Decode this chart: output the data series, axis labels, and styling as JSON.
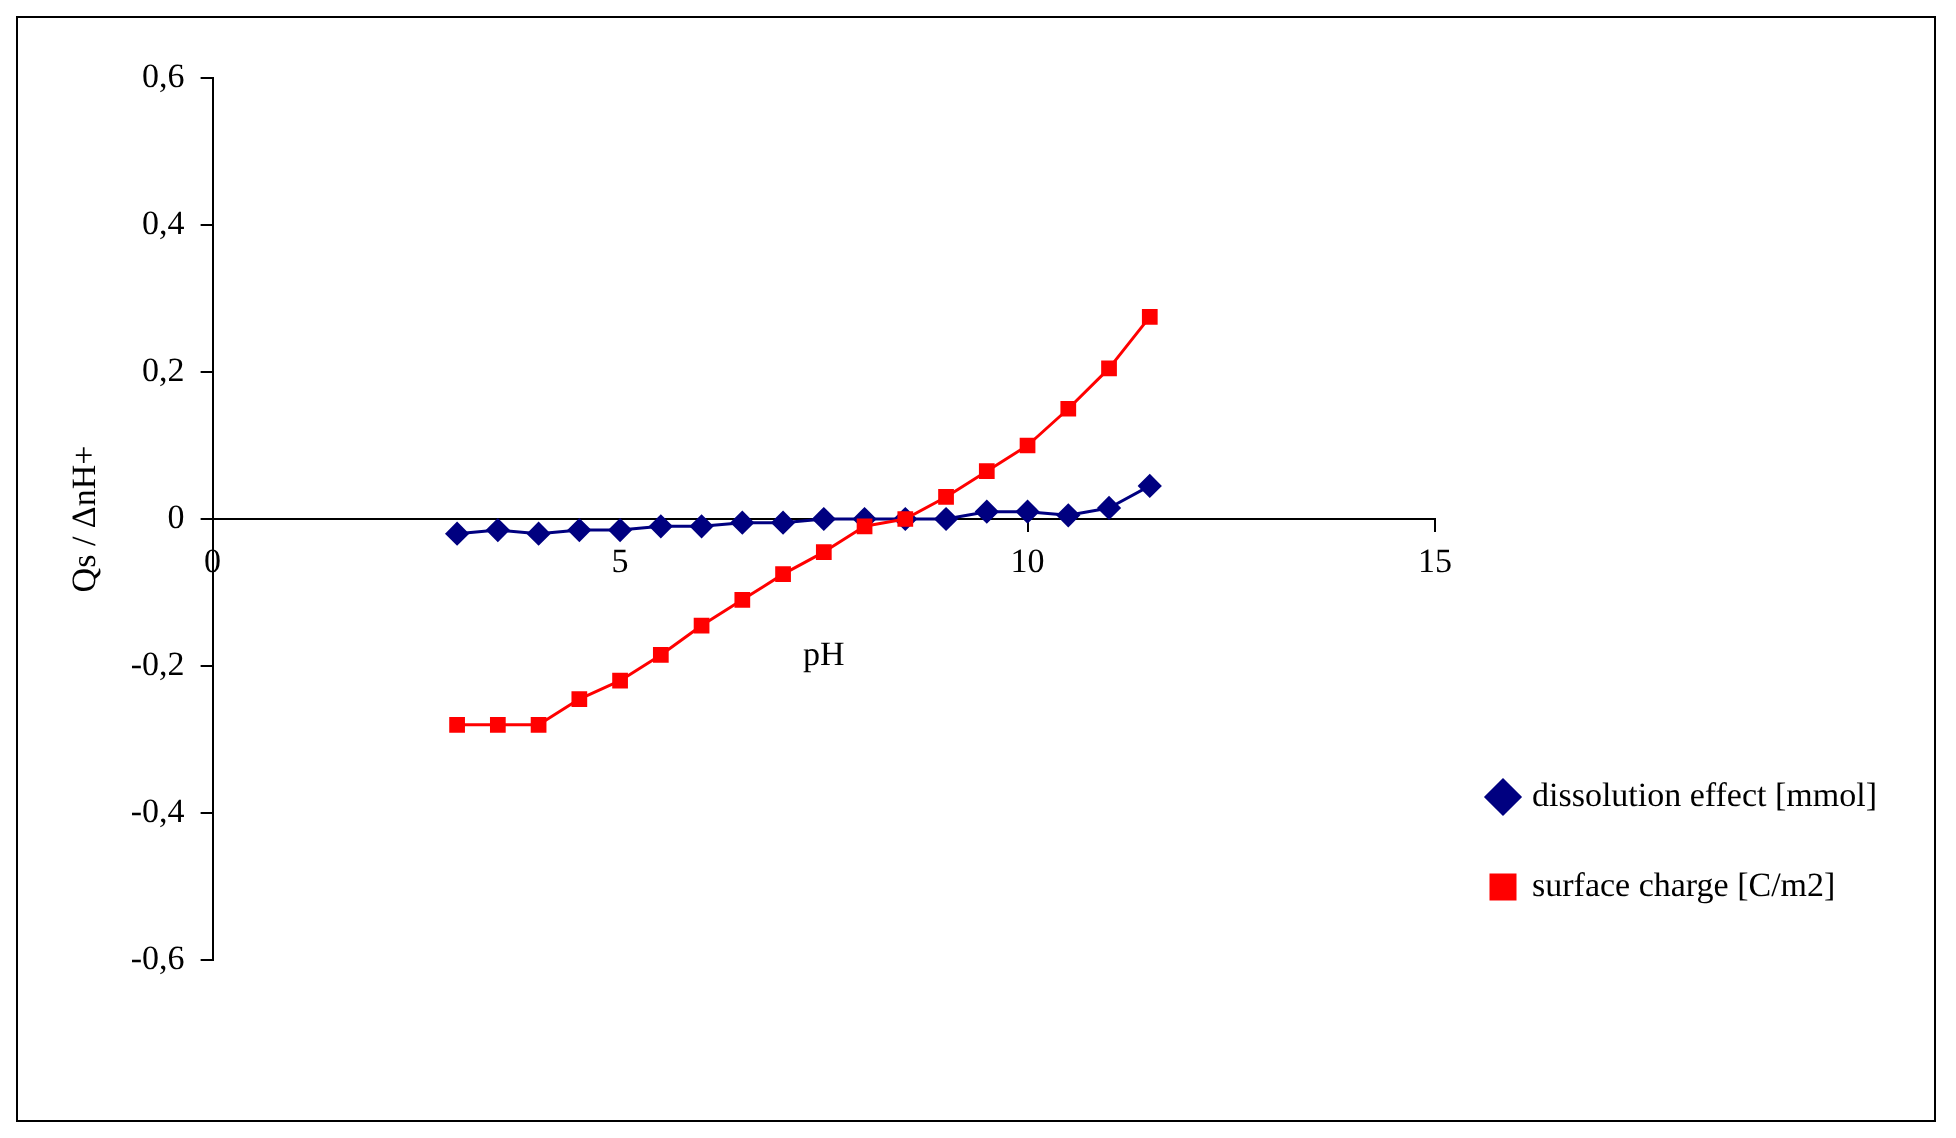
{
  "chart_data": {
    "type": "line",
    "xlabel": "pH",
    "ylabel": "Qs / ΔnH+",
    "xlim": [
      0,
      15
    ],
    "xticks": [
      0,
      5,
      10,
      15
    ],
    "ylim": [
      -0.6,
      0.6
    ],
    "yticks": [
      {
        "value": -0.6,
        "label": "-0,6"
      },
      {
        "value": -0.4,
        "label": "-0,4"
      },
      {
        "value": -0.2,
        "label": "-0,2"
      },
      {
        "value": 0,
        "label": "0"
      },
      {
        "value": 0.2,
        "label": "0,2"
      },
      {
        "value": 0.4,
        "label": "0,4"
      },
      {
        "value": 0.6,
        "label": "0,6"
      }
    ],
    "x": [
      3,
      3.5,
      4,
      4.5,
      5,
      5.5,
      6,
      6.5,
      7,
      7.5,
      8,
      8.5,
      9,
      9.5,
      10,
      10.5,
      11,
      11.5
    ],
    "grid": false,
    "legend": "right",
    "line_style": "solid",
    "series": [
      {
        "name": "dissolution effect [mmol]",
        "color": "#000080",
        "marker": "diamond",
        "values": [
          -0.02,
          -0.015,
          -0.02,
          -0.015,
          -0.015,
          -0.01,
          -0.01,
          -0.005,
          -0.005,
          0,
          0,
          0,
          0,
          0.01,
          0.01,
          0.005,
          0.015,
          0.045
        ]
      },
      {
        "name": "surface charge [C/m2]",
        "color": "#ff0000",
        "marker": "square",
        "values": [
          -0.28,
          -0.28,
          -0.28,
          -0.245,
          -0.22,
          -0.185,
          -0.145,
          -0.11,
          -0.075,
          -0.045,
          -0.01,
          0,
          0.03,
          0.065,
          0.1,
          0.15,
          0.205,
          0.275
        ]
      }
    ]
  }
}
